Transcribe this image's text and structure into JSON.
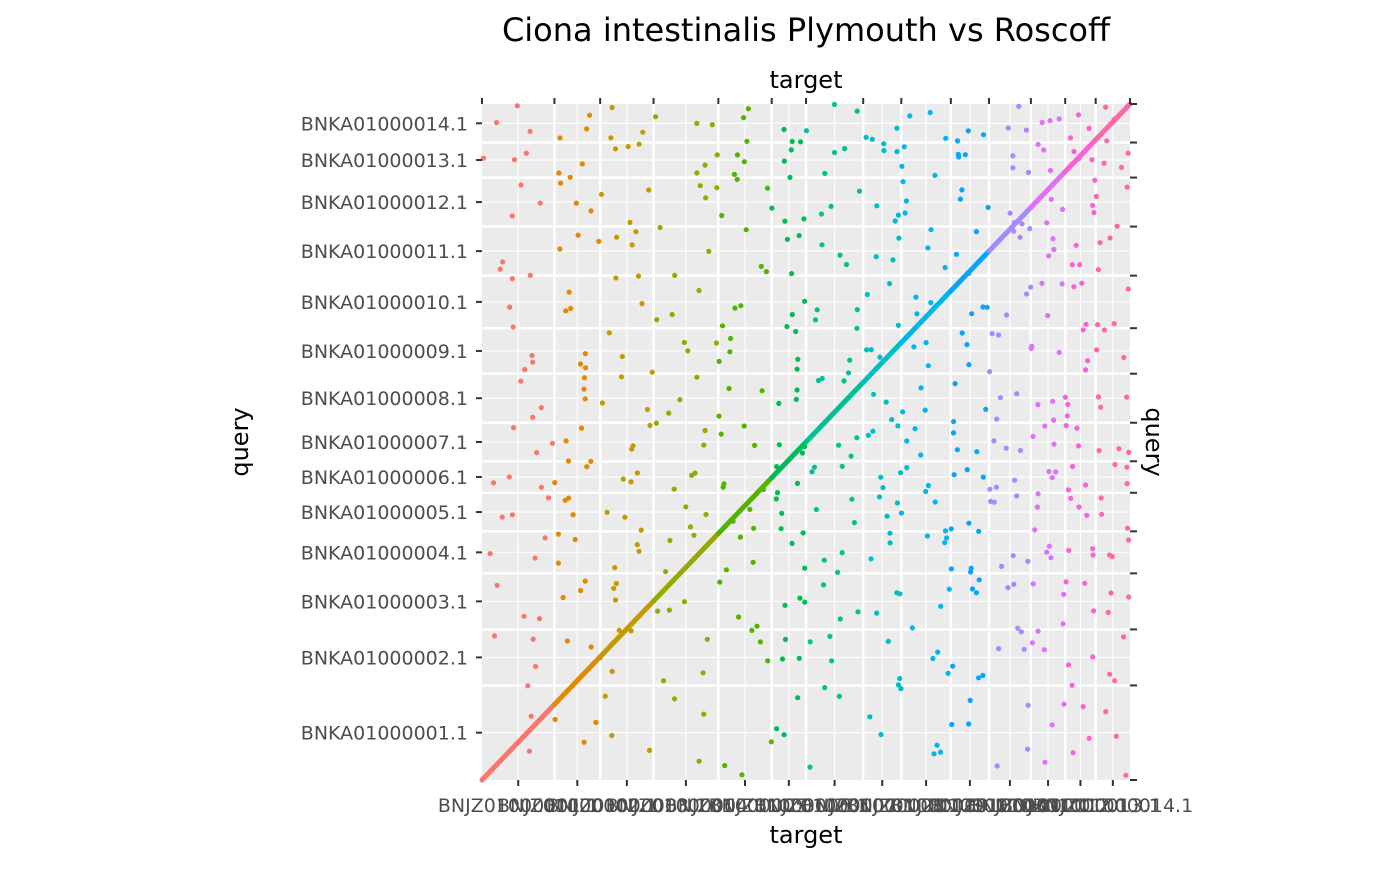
{
  "chart_data": {
    "type": "scatter",
    "title": "Ciona intestinalis Plymouth vs Roscoff",
    "xlabel": "target",
    "ylabel": "query",
    "x_sequences": [
      {
        "name": "BNJZ01000001.1",
        "length": 1.9
      },
      {
        "name": "BNJZ01000002.1",
        "length": 1.2
      },
      {
        "name": "BNJZ01000003.1",
        "length": 1.4
      },
      {
        "name": "BNJZ01000004.1",
        "length": 1.7
      },
      {
        "name": "BNJZ01000005.1",
        "length": 1.4
      },
      {
        "name": "BNJZ01000006.1",
        "length": 0.9
      },
      {
        "name": "BNJZ01000007.1",
        "length": 1.5
      },
      {
        "name": "BNJZ01000008.1",
        "length": 1.0
      },
      {
        "name": "BNJZ01000009.1",
        "length": 1.3
      },
      {
        "name": "BNJZ01000010.1",
        "length": 1.0
      },
      {
        "name": "BNJZ01000011.1",
        "length": 1.1
      },
      {
        "name": "BNJZ01000012.1",
        "length": 0.9
      },
      {
        "name": "BNJZ01000013.1",
        "length": 0.8
      },
      {
        "name": "BNJZ01000014.1",
        "length": 0.9
      }
    ],
    "y_sequences": [
      {
        "name": "BNKA01000001.1",
        "length": 2.7
      },
      {
        "name": "BNKA01000002.1",
        "length": 1.6
      },
      {
        "name": "BNKA01000003.1",
        "length": 1.6
      },
      {
        "name": "BNKA01000004.1",
        "length": 1.2
      },
      {
        "name": "BNKA01000005.1",
        "length": 1.1
      },
      {
        "name": "BNKA01000006.1",
        "length": 0.9
      },
      {
        "name": "BNKA01000007.1",
        "length": 1.1
      },
      {
        "name": "BNKA01000008.1",
        "length": 1.4
      },
      {
        "name": "BNKA01000009.1",
        "length": 1.3
      },
      {
        "name": "BNKA01000010.1",
        "length": 1.5
      },
      {
        "name": "BNKA01000011.1",
        "length": 1.4
      },
      {
        "name": "BNKA01000012.1",
        "length": 1.4
      },
      {
        "name": "BNKA01000013.1",
        "length": 1.0
      },
      {
        "name": "BNKA01000014.1",
        "length": 1.1
      }
    ],
    "series_colors": [
      "#F8766D",
      "#E38900",
      "#C49A00",
      "#99A800",
      "#53B400",
      "#00BC56",
      "#00C094",
      "#00BFC4",
      "#00B6EB",
      "#06A4FF",
      "#A58AFF",
      "#DF70F8",
      "#FB61D7",
      "#FF66A8"
    ],
    "scatter_points_per_block": 3,
    "grid": true,
    "legend": "none",
    "panel_background": "#EBEBEB",
    "grid_color": "#FFFFFF",
    "secondary_axes": {
      "top": "target",
      "right": "query"
    }
  }
}
